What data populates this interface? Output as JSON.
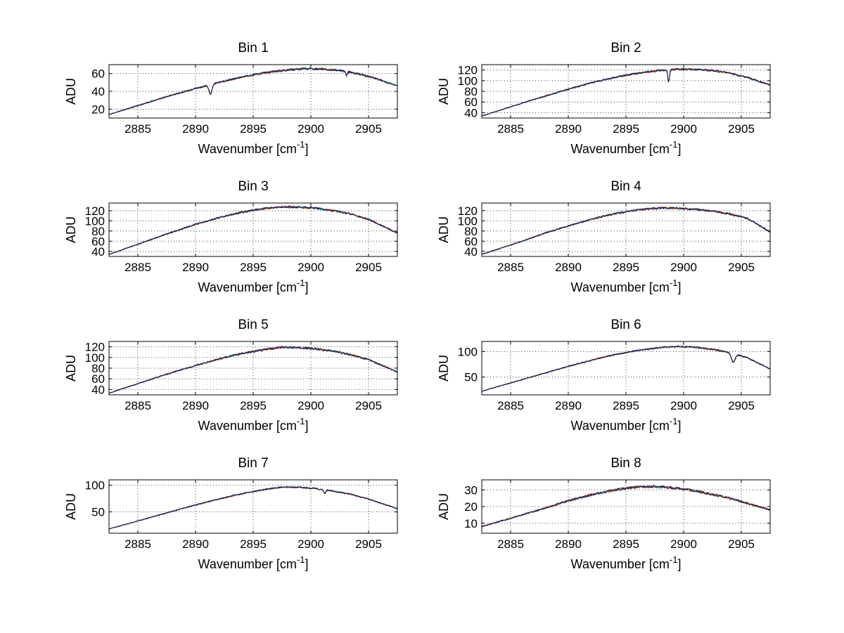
{
  "figure": {
    "background": "#ffffff"
  },
  "axis": {
    "ylabel": "ADU",
    "xlabel_prefix": "Wavenumber [cm",
    "xlabel_sup": "-1",
    "xlabel_suffix": "]"
  },
  "style": {
    "trace_colors": [
      "#ff8c00",
      "#00b0b0",
      "#8b1a1a",
      "#14145e"
    ],
    "grid_color": "#444444",
    "axis_color": "#000000"
  },
  "chart_data": [
    {
      "type": "line",
      "title": "Bin 1",
      "xlabel": "Wavenumber [cm^-1]",
      "ylabel": "ADU",
      "xlim": [
        2882.5,
        2907.5
      ],
      "ylim": [
        10,
        70
      ],
      "xticks": [
        2885,
        2890,
        2895,
        2900,
        2905
      ],
      "yticks": [
        20,
        40,
        60
      ],
      "grid": true,
      "noise": 1.3,
      "points": [
        [
          2882.5,
          14
        ],
        [
          2884,
          20
        ],
        [
          2886,
          28
        ],
        [
          2888,
          36
        ],
        [
          2890,
          43
        ],
        [
          2892,
          50
        ],
        [
          2894,
          56
        ],
        [
          2896,
          61
        ],
        [
          2898,
          64
        ],
        [
          2899.5,
          65.5
        ],
        [
          2901,
          65
        ],
        [
          2902.5,
          63.5
        ],
        [
          2904,
          60
        ],
        [
          2905.5,
          55
        ],
        [
          2907.5,
          46
        ]
      ],
      "dips": [
        {
          "x": 2891.3,
          "depth": 11,
          "width": 0.18
        },
        {
          "x": 2903.1,
          "depth": 5,
          "width": 0.08
        }
      ]
    },
    {
      "type": "line",
      "title": "Bin 2",
      "xlabel": "Wavenumber [cm^-1]",
      "ylabel": "ADU",
      "xlim": [
        2882.5,
        2907.5
      ],
      "ylim": [
        30,
        130
      ],
      "xticks": [
        2885,
        2890,
        2895,
        2900,
        2905
      ],
      "yticks": [
        40,
        60,
        80,
        100,
        120
      ],
      "grid": true,
      "noise": 2.0,
      "points": [
        [
          2882.5,
          34
        ],
        [
          2884,
          44
        ],
        [
          2886,
          58
        ],
        [
          2888,
          71
        ],
        [
          2890,
          84
        ],
        [
          2892,
          96
        ],
        [
          2894,
          106
        ],
        [
          2896,
          114
        ],
        [
          2898,
          119.5
        ],
        [
          2899.5,
          121.5
        ],
        [
          2901,
          121
        ],
        [
          2902.5,
          119
        ],
        [
          2904,
          114
        ],
        [
          2905.5,
          106
        ],
        [
          2907.5,
          92
        ]
      ],
      "dips": [
        {
          "x": 2898.7,
          "depth": 26,
          "width": 0.09
        }
      ]
    },
    {
      "type": "line",
      "title": "Bin 3",
      "xlabel": "Wavenumber [cm^-1]",
      "ylabel": "ADU",
      "xlim": [
        2882.5,
        2907.5
      ],
      "ylim": [
        30,
        135
      ],
      "xticks": [
        2885,
        2890,
        2895,
        2900,
        2905
      ],
      "yticks": [
        40,
        60,
        80,
        100,
        120
      ],
      "grid": true,
      "noise": 2.2,
      "points": [
        [
          2882.5,
          34
        ],
        [
          2884,
          46
        ],
        [
          2886,
          62
        ],
        [
          2888,
          78
        ],
        [
          2890,
          93
        ],
        [
          2892,
          106
        ],
        [
          2894,
          117
        ],
        [
          2896,
          124.5
        ],
        [
          2897.5,
          127.5
        ],
        [
          2899,
          127
        ],
        [
          2900.5,
          124.5
        ],
        [
          2902,
          120
        ],
        [
          2903.5,
          113
        ],
        [
          2905,
          103
        ],
        [
          2907.5,
          76
        ]
      ],
      "dips": []
    },
    {
      "type": "line",
      "title": "Bin 4",
      "xlabel": "Wavenumber [cm^-1]",
      "ylabel": "ADU",
      "xlim": [
        2882.5,
        2907.5
      ],
      "ylim": [
        30,
        135
      ],
      "xticks": [
        2885,
        2890,
        2895,
        2900,
        2905
      ],
      "yticks": [
        40,
        60,
        80,
        100,
        120
      ],
      "grid": true,
      "noise": 2.2,
      "points": [
        [
          2882.5,
          34
        ],
        [
          2884,
          45
        ],
        [
          2886,
          60
        ],
        [
          2888,
          76
        ],
        [
          2890,
          90
        ],
        [
          2892,
          103
        ],
        [
          2894,
          114
        ],
        [
          2896,
          121.5
        ],
        [
          2898,
          125.5
        ],
        [
          2899.5,
          125
        ],
        [
          2901,
          122.5
        ],
        [
          2902.5,
          119
        ],
        [
          2904,
          113.5
        ],
        [
          2905.5,
          105
        ],
        [
          2907.5,
          78
        ]
      ],
      "dips": []
    },
    {
      "type": "line",
      "title": "Bin 5",
      "xlabel": "Wavenumber [cm^-1]",
      "ylabel": "ADU",
      "xlim": [
        2882.5,
        2907.5
      ],
      "ylim": [
        30,
        130
      ],
      "xticks": [
        2885,
        2890,
        2895,
        2900,
        2905
      ],
      "yticks": [
        40,
        60,
        80,
        100,
        120
      ],
      "grid": true,
      "noise": 2.2,
      "points": [
        [
          2882.5,
          33
        ],
        [
          2884,
          44
        ],
        [
          2886,
          58
        ],
        [
          2888,
          72
        ],
        [
          2890,
          85
        ],
        [
          2892,
          97
        ],
        [
          2894,
          107.5
        ],
        [
          2896,
          115
        ],
        [
          2897.5,
          119
        ],
        [
          2899,
          118.5
        ],
        [
          2900.5,
          116
        ],
        [
          2902,
          111.5
        ],
        [
          2903.5,
          105
        ],
        [
          2905,
          96
        ],
        [
          2907.5,
          73
        ]
      ],
      "dips": []
    },
    {
      "type": "line",
      "title": "Bin 6",
      "xlabel": "Wavenumber [cm^-1]",
      "ylabel": "ADU",
      "xlim": [
        2882.5,
        2907.5
      ],
      "ylim": [
        15,
        120
      ],
      "xticks": [
        2885,
        2890,
        2895,
        2900,
        2905
      ],
      "yticks": [
        50,
        100
      ],
      "grid": true,
      "noise": 1.8,
      "points": [
        [
          2882.5,
          22
        ],
        [
          2884,
          32
        ],
        [
          2886,
          45
        ],
        [
          2888,
          58
        ],
        [
          2890,
          71
        ],
        [
          2892,
          83
        ],
        [
          2894,
          94
        ],
        [
          2896,
          102.5
        ],
        [
          2898,
          108
        ],
        [
          2899.5,
          110
        ],
        [
          2901,
          108.5
        ],
        [
          2902.5,
          104.5
        ],
        [
          2904,
          98
        ],
        [
          2905.5,
          88
        ],
        [
          2907.5,
          66
        ]
      ],
      "dips": [
        {
          "x": 2904.3,
          "depth": 17,
          "width": 0.22
        }
      ]
    },
    {
      "type": "line",
      "title": "Bin 7",
      "xlabel": "Wavenumber [cm^-1]",
      "ylabel": "ADU",
      "xlim": [
        2882.5,
        2907.5
      ],
      "ylim": [
        10,
        110
      ],
      "xticks": [
        2885,
        2890,
        2895,
        2900,
        2905
      ],
      "yticks": [
        50,
        100
      ],
      "grid": true,
      "noise": 1.6,
      "points": [
        [
          2882.5,
          18
        ],
        [
          2884,
          27
        ],
        [
          2886,
          39
        ],
        [
          2888,
          51
        ],
        [
          2890,
          63
        ],
        [
          2892,
          74
        ],
        [
          2894,
          84
        ],
        [
          2896,
          92
        ],
        [
          2897.5,
          96.5
        ],
        [
          2899,
          96
        ],
        [
          2900.5,
          93.5
        ],
        [
          2902,
          89
        ],
        [
          2903.5,
          82.5
        ],
        [
          2905,
          74
        ],
        [
          2907.5,
          56
        ]
      ],
      "dips": [
        {
          "x": 2901.2,
          "depth": 7,
          "width": 0.12
        }
      ]
    },
    {
      "type": "line",
      "title": "Bin 8",
      "xlabel": "Wavenumber [cm^-1]",
      "ylabel": "ADU",
      "xlim": [
        2882.5,
        2907.5
      ],
      "ylim": [
        4,
        36
      ],
      "xticks": [
        2885,
        2890,
        2895,
        2900,
        2905
      ],
      "yticks": [
        10,
        20,
        30
      ],
      "grid": true,
      "noise": 0.9,
      "points": [
        [
          2882.5,
          8
        ],
        [
          2884,
          11
        ],
        [
          2886,
          15
        ],
        [
          2888,
          19
        ],
        [
          2890,
          23.5
        ],
        [
          2892,
          27
        ],
        [
          2894,
          30
        ],
        [
          2896,
          31.8
        ],
        [
          2897.5,
          32
        ],
        [
          2899,
          31.3
        ],
        [
          2900.5,
          30
        ],
        [
          2902,
          28
        ],
        [
          2903.5,
          25.8
        ],
        [
          2905,
          23
        ],
        [
          2907.5,
          18
        ]
      ],
      "dips": []
    }
  ]
}
